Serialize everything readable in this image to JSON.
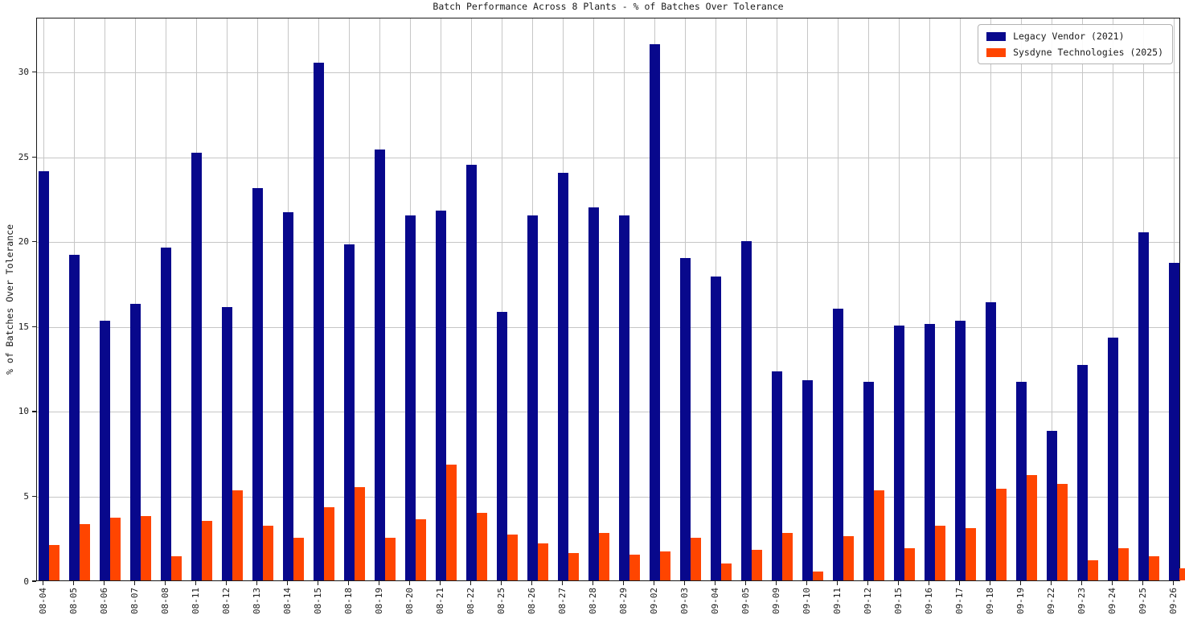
{
  "chart_data": {
    "type": "bar",
    "title": "Batch Performance Across 8 Plants - % of Batches Over Tolerance",
    "xlabel": "",
    "ylabel": "% of Batches Over Tolerance",
    "grid": true,
    "legend_position": "upper right",
    "yticks": [
      0,
      5,
      10,
      15,
      20,
      25,
      30
    ],
    "ylim": [
      0,
      33.2
    ],
    "categories": [
      "08-04",
      "08-05",
      "08-06",
      "08-07",
      "08-08",
      "08-11",
      "08-12",
      "08-13",
      "08-14",
      "08-15",
      "08-18",
      "08-19",
      "08-20",
      "08-21",
      "08-22",
      "08-25",
      "08-26",
      "08-27",
      "08-28",
      "08-29",
      "09-02",
      "09-03",
      "09-04",
      "09-05",
      "09-09",
      "09-10",
      "09-11",
      "09-12",
      "09-15",
      "09-16",
      "09-17",
      "09-18",
      "09-19",
      "09-22",
      "09-23",
      "09-24",
      "09-25",
      "09-26"
    ],
    "series": [
      {
        "name": "Legacy Vendor (2021)",
        "color": "#08088c",
        "values": [
          24.1,
          19.2,
          15.3,
          16.3,
          19.6,
          25.2,
          16.1,
          23.1,
          21.7,
          30.5,
          19.8,
          25.4,
          21.5,
          21.8,
          24.5,
          15.8,
          21.5,
          24.0,
          22.0,
          21.5,
          31.6,
          19.0,
          17.9,
          20.0,
          12.3,
          11.8,
          16.0,
          11.7,
          15.0,
          15.1,
          15.3,
          16.4,
          11.7,
          8.8,
          12.7,
          14.3,
          20.5,
          18.7
        ]
      },
      {
        "name": "Sysdyne Technologies (2025)",
        "color": "#ff4500",
        "values": [
          2.1,
          3.3,
          3.7,
          3.8,
          1.4,
          3.5,
          5.3,
          3.2,
          2.5,
          4.3,
          5.5,
          2.5,
          3.6,
          6.8,
          4.0,
          2.7,
          2.2,
          1.6,
          2.8,
          1.5,
          1.7,
          2.5,
          1.0,
          1.8,
          2.8,
          0.5,
          2.6,
          5.3,
          1.9,
          3.2,
          3.1,
          5.4,
          6.2,
          5.7,
          1.2,
          1.9,
          1.4,
          0.7
        ]
      }
    ]
  }
}
